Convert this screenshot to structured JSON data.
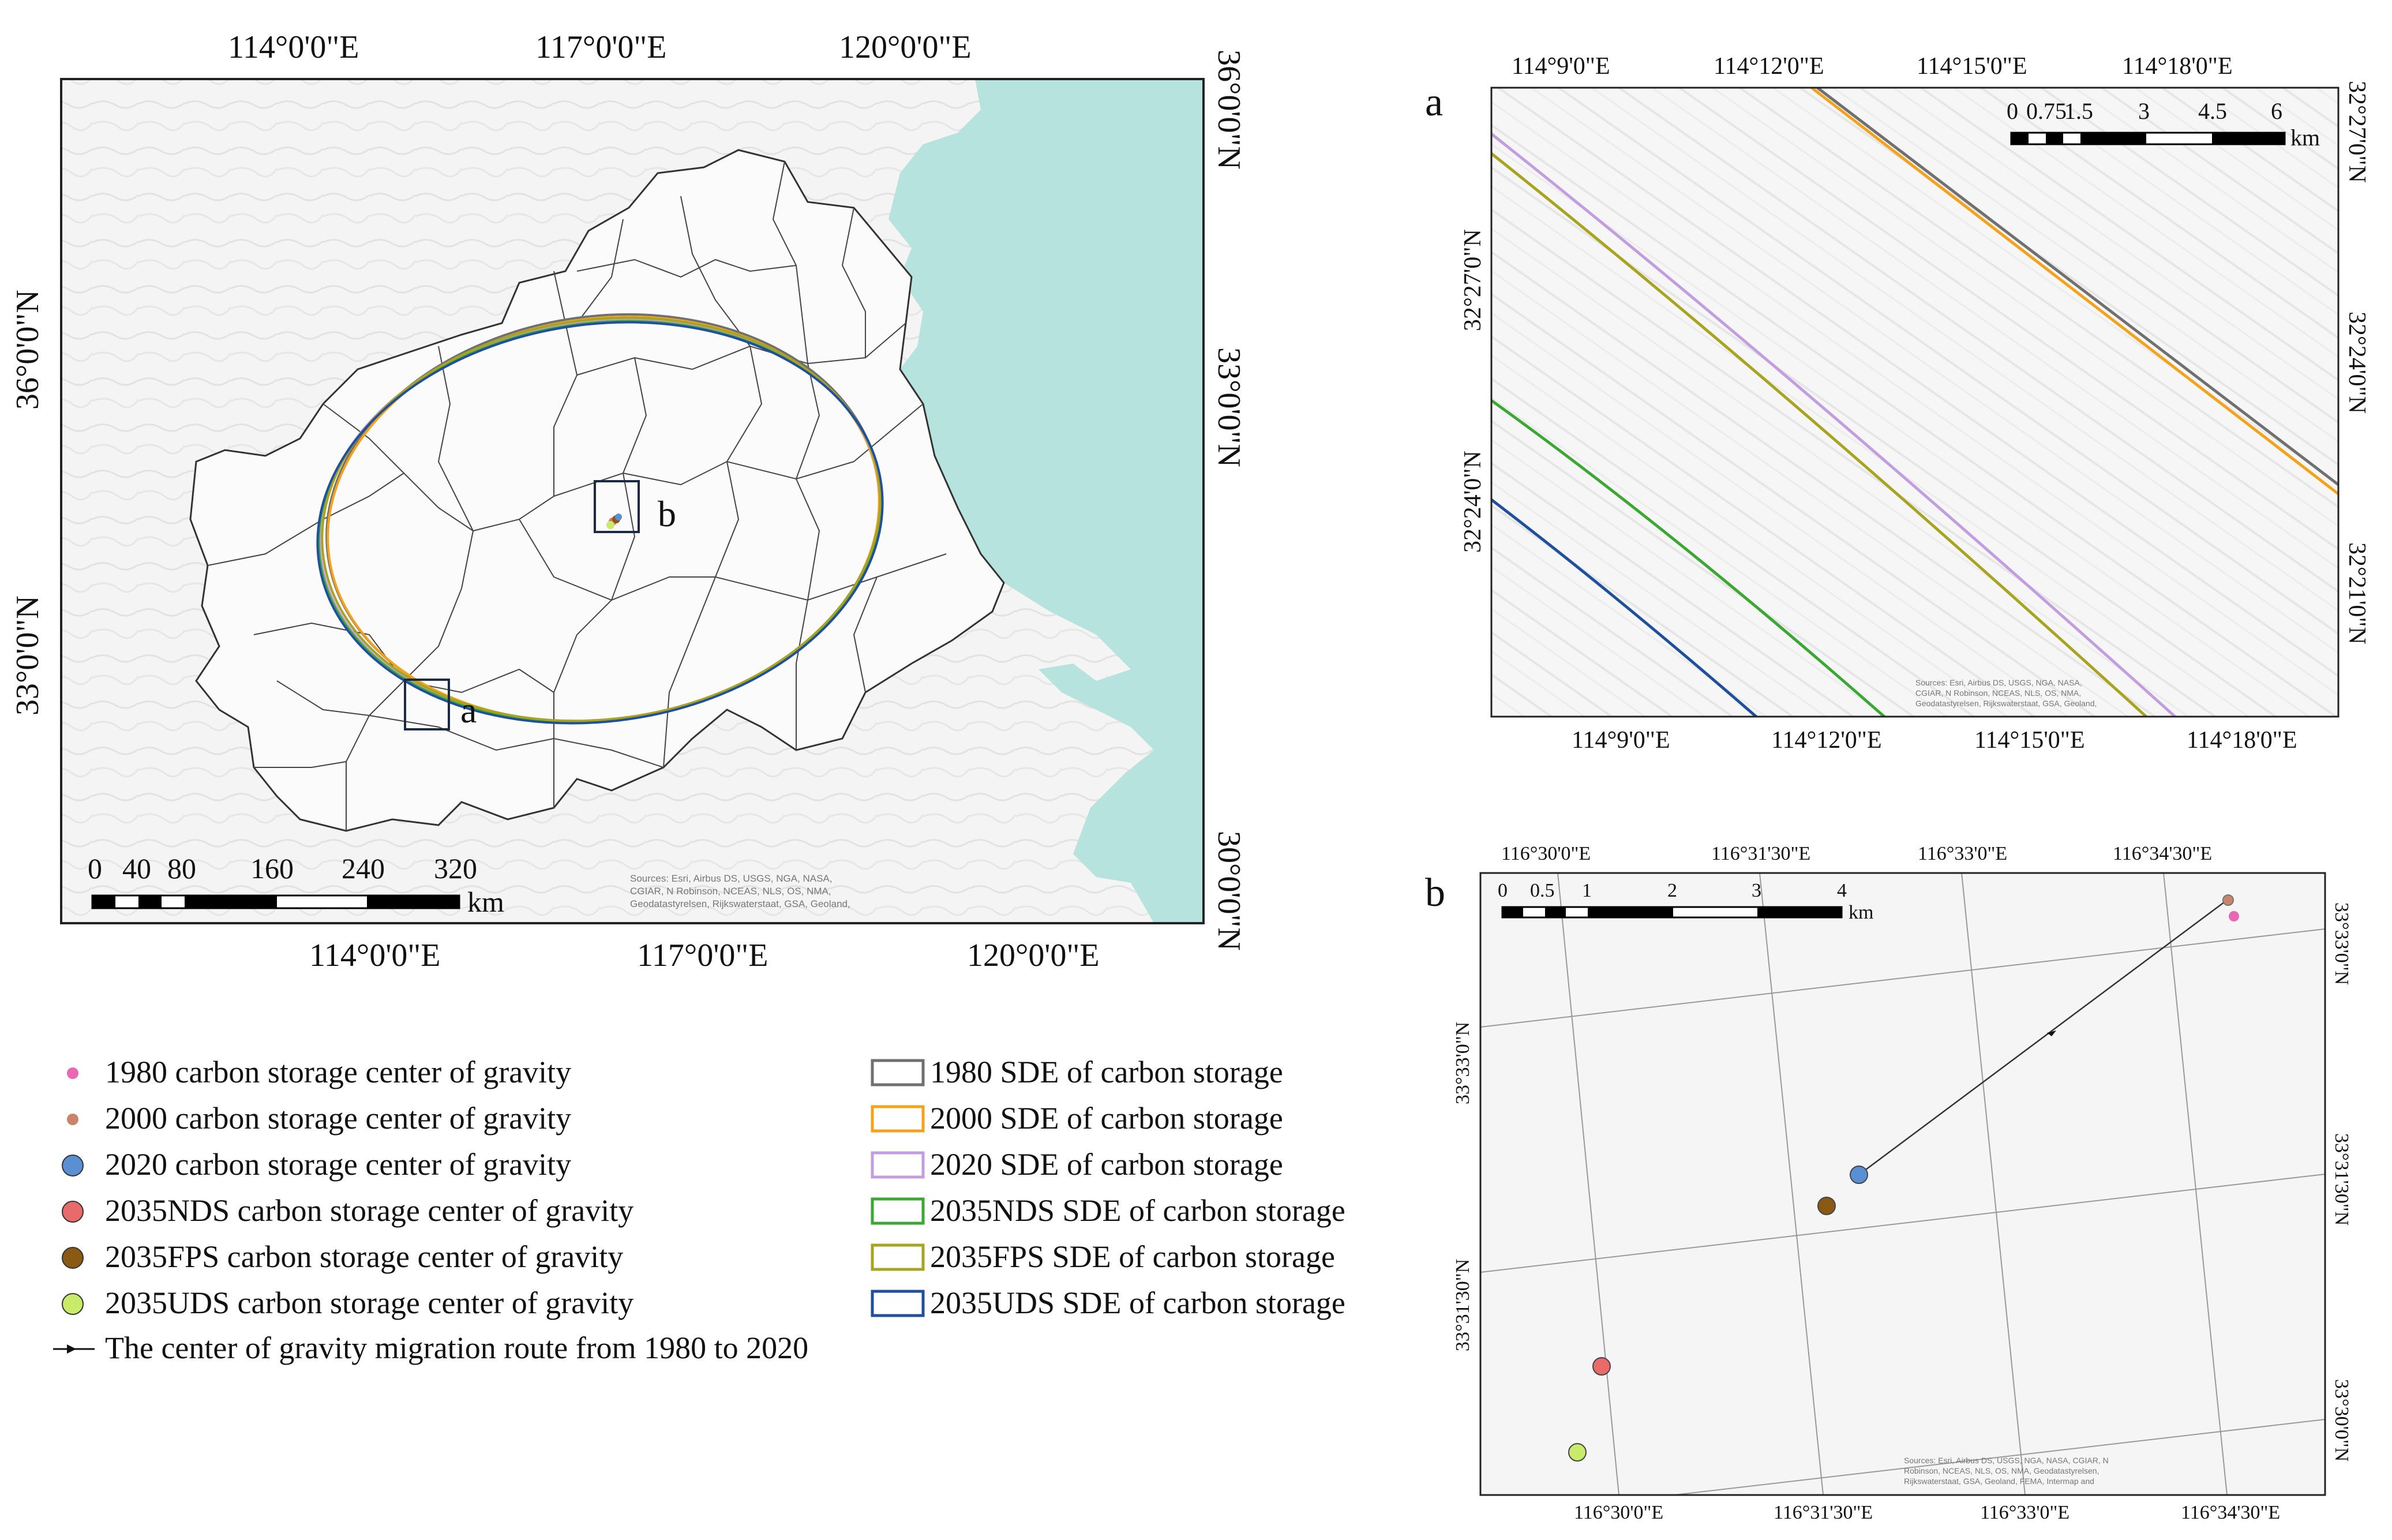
{
  "main_map": {
    "top_lon_labels": [
      "114°0'0\"E",
      "117°0'0\"E",
      "120°0'0\"E"
    ],
    "bottom_lon_labels": [
      "114°0'0\"E",
      "117°0'0\"E",
      "120°0'0\"E"
    ],
    "left_lat_labels": [
      "36°0'0\"N",
      "33°0'0\"N"
    ],
    "right_lat_labels": [
      "36°0'0\"N",
      "33°0'0\"N",
      "30°0'0\"N"
    ],
    "scale_ticks": [
      "0",
      "40",
      "80",
      "160",
      "240",
      "320"
    ],
    "scale_unit": "km",
    "inset_a_label": "a",
    "inset_b_label": "b",
    "sources": [
      "Sources: Esri, Airbus DS, USGS, NGA, NASA,",
      "CGIAR, N Robinson, NCEAS, NLS, OS, NMA,",
      "Geodatastyrelsen, Rijkswaterstaat, GSA, Geoland,"
    ]
  },
  "panel_a": {
    "letter": "a",
    "top_lon_labels": [
      "114°9'0\"E",
      "114°12'0\"E",
      "114°15'0\"E",
      "114°18'0\"E"
    ],
    "bottom_lon_labels": [
      "114°9'0\"E",
      "114°12'0\"E",
      "114°15'0\"E",
      "114°18'0\"E"
    ],
    "left_lat_labels": [
      "32°27'0\"N",
      "32°24'0\"N"
    ],
    "right_lat_labels": [
      "32°27'0\"N",
      "32°24'0\"N",
      "32°21'0\"N"
    ],
    "scale_ticks": [
      "0",
      "0.75",
      "1.5",
      "3",
      "4.5",
      "6"
    ],
    "scale_unit": "km",
    "sources": [
      "Sources: Esri, Airbus DS, USGS, NGA, NASA,",
      "CGIAR, N Robinson, NCEAS, NLS, OS, NMA,",
      "Geodatastyrelsen, Rijkswaterstaat, GSA, Geoland,"
    ]
  },
  "panel_b": {
    "letter": "b",
    "top_lon_labels": [
      "116°30'0\"E",
      "116°31'30\"E",
      "116°33'0\"E",
      "116°34'30\"E"
    ],
    "bottom_lon_labels": [
      "116°30'0\"E",
      "116°31'30\"E",
      "116°33'0\"E",
      "116°34'30\"E"
    ],
    "left_lat_labels": [
      "33°33'0\"N",
      "33°31'30\"N"
    ],
    "right_lat_labels": [
      "33°33'0\"N",
      "33°31'30\"N",
      "33°30'0\"N"
    ],
    "scale_ticks": [
      "0",
      "0.5",
      "1",
      "2",
      "3",
      "4"
    ],
    "scale_unit": "km",
    "sources": [
      "Sources: Esri, Airbus DS, USGS, NGA, NASA, CGIAR, N",
      "Robinson, NCEAS, NLS, OS, NMA, Geodatastyrelsen,",
      "Rijkswaterstaat, GSA, Geoland, FEMA, Intermap and"
    ]
  },
  "legend": {
    "points": [
      {
        "label": "1980 carbon storage center of gravity",
        "color": "#e868b4",
        "size": "small"
      },
      {
        "label": "2000 carbon storage center of gravity",
        "color": "#c8856a",
        "size": "small"
      },
      {
        "label": "2020 carbon storage center of gravity",
        "color": "#5b8fd4",
        "size": "large"
      },
      {
        "label": "2035NDS carbon storage center of gravity",
        "color": "#e86a6a",
        "size": "large"
      },
      {
        "label": "2035FPS carbon storage center of gravity",
        "color": "#8a5a14",
        "size": "large"
      },
      {
        "label": "2035UDS carbon storage center of gravity",
        "color": "#c8ec6a",
        "size": "large"
      }
    ],
    "route_label": "The center of gravity migration route from 1980 to 2020",
    "ellipses": [
      {
        "label": "1980 SDE of carbon storage",
        "color": "#707070"
      },
      {
        "label": "2000 SDE of carbon storage",
        "color": "#f5a21a"
      },
      {
        "label": "2020 SDE of carbon storage",
        "color": "#c29ee0"
      },
      {
        "label": "2035NDS SDE of carbon storage",
        "color": "#3aa832"
      },
      {
        "label": "2035FPS SDE of carbon storage",
        "color": "#a8a420"
      },
      {
        "label": "2035UDS SDE of carbon storage",
        "color": "#1f4fa0"
      }
    ]
  },
  "colors": {
    "sea": "#b6e3de",
    "land": "#f2f2f2",
    "border": "#333333"
  }
}
